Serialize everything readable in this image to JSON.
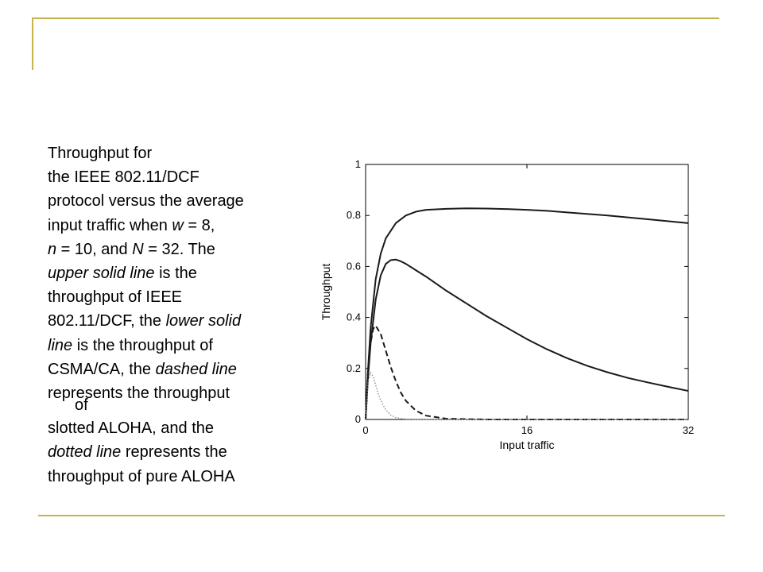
{
  "caption": {
    "l1": "Throughput for",
    "l2": "the IEEE 802.11/DCF",
    "l3": "protocol versus the average",
    "l4_a": "input traffic when ",
    "l4_w": "w",
    "l4_b": " = 8,",
    "l5_n": "n",
    "l5_a": " = 10, and ",
    "l5_N": "N",
    "l5_b": " = 32. The",
    "l6_i": "upper solid line",
    "l6_b": " is the",
    "l7": "throughput of IEEE",
    "l8_a": "802.11/DCF, the ",
    "l8_i": "lower solid",
    "l9_i": "line",
    "l9_b": " is the throughput of",
    "l10_a": "CSMA/CA, the ",
    "l10_i": "dashed line",
    "l11": "represents the throughput",
    "l11_cont": "of",
    "l12": "slotted ALOHA, and the",
    "l13_i": "dotted line",
    "l13_b": " represents the",
    "l14": "throughput of pure ALOHA"
  },
  "colors": {
    "accent_rule": "#c8b24a",
    "axis": "#000000",
    "curves": "#1a1a1a",
    "dotted": "#888888"
  },
  "chart_data": {
    "type": "line",
    "title": "",
    "xlabel": "Input traffic",
    "ylabel": "Throughput",
    "xlim": [
      0,
      32
    ],
    "ylim": [
      0,
      1
    ],
    "xticks": [
      0,
      16,
      32
    ],
    "xtick_labels": [
      "0",
      "16",
      "32"
    ],
    "yticks": [
      0,
      0.2,
      0.4,
      0.6,
      0.8,
      1
    ],
    "ytick_labels": [
      "0",
      "0.2",
      "0.4",
      "0.6",
      "0.8",
      "1"
    ],
    "grid": false,
    "legend": "none",
    "series": [
      {
        "style": "solid",
        "x": [
          0,
          0.25,
          0.5,
          1,
          1.5,
          2,
          3,
          4,
          5,
          6,
          8,
          10,
          12,
          14,
          16,
          18,
          20,
          24,
          28,
          32
        ],
        "y": [
          0,
          0.2,
          0.36,
          0.55,
          0.65,
          0.71,
          0.77,
          0.8,
          0.815,
          0.822,
          0.826,
          0.828,
          0.827,
          0.825,
          0.822,
          0.818,
          0.812,
          0.8,
          0.785,
          0.77
        ]
      },
      {
        "style": "solid",
        "x": [
          0,
          0.25,
          0.5,
          1,
          1.5,
          2,
          2.5,
          3,
          3.5,
          4,
          5,
          6,
          8,
          10,
          12,
          14,
          16,
          18,
          20,
          22,
          24,
          26,
          28,
          30,
          32
        ],
        "y": [
          0,
          0.17,
          0.3,
          0.47,
          0.565,
          0.61,
          0.625,
          0.627,
          0.62,
          0.61,
          0.585,
          0.56,
          0.505,
          0.455,
          0.405,
          0.36,
          0.315,
          0.275,
          0.24,
          0.21,
          0.185,
          0.163,
          0.145,
          0.128,
          0.112
        ]
      },
      {
        "style": "dashed",
        "x": [
          0,
          0.25,
          0.5,
          0.75,
          1,
          1.5,
          2,
          2.5,
          3,
          3.5,
          4,
          5,
          6,
          8,
          12,
          16,
          24,
          32
        ],
        "y": [
          0,
          0.2,
          0.3,
          0.355,
          0.368,
          0.335,
          0.27,
          0.205,
          0.15,
          0.105,
          0.073,
          0.034,
          0.015,
          0.003,
          0,
          0,
          0,
          0
        ]
      },
      {
        "style": "dotted",
        "x": [
          0,
          0.25,
          0.5,
          0.75,
          1,
          1.25,
          1.5,
          2,
          2.5,
          3,
          4,
          6,
          8,
          16,
          32
        ],
        "y": [
          0,
          0.15,
          0.184,
          0.168,
          0.135,
          0.1,
          0.075,
          0.037,
          0.017,
          0.007,
          0.001,
          0,
          0,
          0,
          0
        ]
      }
    ]
  }
}
